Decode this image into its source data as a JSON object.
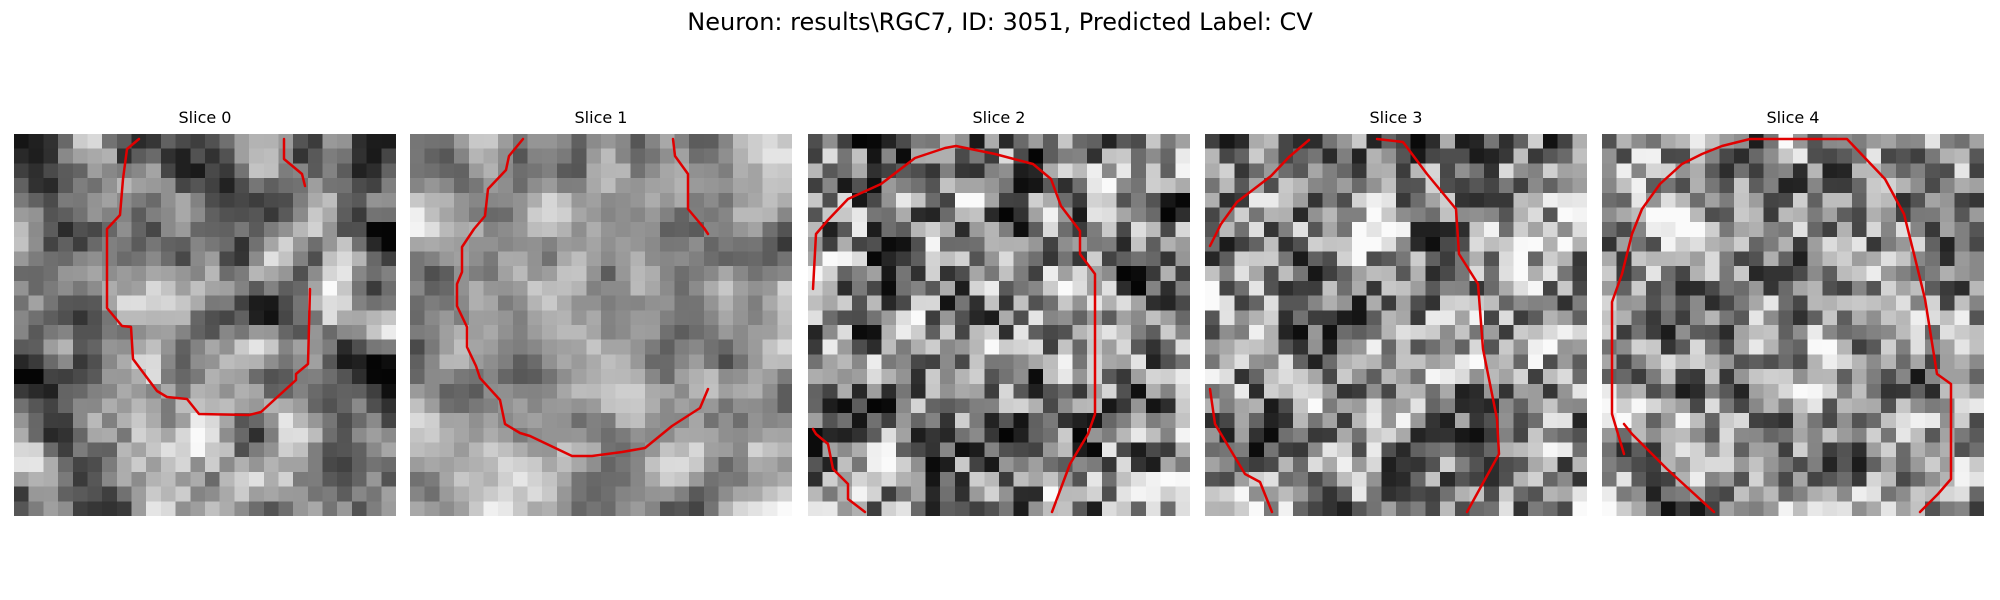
{
  "figure": {
    "title": "Neuron: results\\RGC7, ID: 3051, Predicted Label: CV"
  },
  "panels": [
    {
      "title": "Slice 0",
      "image": {
        "grid_cols": 26,
        "grid_rows": 26,
        "seed": 11,
        "mean": 0.47,
        "contrast": 0.95,
        "smooth": 0.7,
        "palette": "grayscale"
      },
      "contour": {
        "color": "#e00000",
        "segments": [
          [
            [
              125,
              5
            ],
            [
              113,
              15
            ],
            [
              109,
              45
            ],
            [
              106,
              81
            ],
            [
              93,
              95
            ],
            [
              93,
              174
            ],
            [
              108,
              192
            ],
            [
              117,
              193
            ],
            [
              119,
              225
            ],
            [
              143,
              257
            ],
            [
              153,
              263
            ],
            [
              173,
              265
            ],
            [
              185,
              280
            ],
            [
              235,
              281
            ],
            [
              247,
              278
            ],
            [
              282,
              246
            ],
            [
              282,
              240
            ],
            [
              294,
              230
            ],
            [
              296,
              155
            ]
          ],
          [
            [
              270,
              5
            ],
            [
              270,
              25
            ],
            [
              288,
              40
            ],
            [
              291,
              52
            ]
          ]
        ]
      }
    },
    {
      "title": "Slice 1",
      "image": {
        "grid_cols": 26,
        "grid_rows": 26,
        "seed": 23,
        "mean": 0.6,
        "contrast": 0.65,
        "smooth": 0.8,
        "palette": "grayscale"
      },
      "contour": {
        "color": "#e00000",
        "segments": [
          [
            [
              113,
              5
            ],
            [
              99,
              22
            ],
            [
              96,
              36
            ],
            [
              78,
              55
            ],
            [
              75,
              82
            ],
            [
              64,
              95
            ],
            [
              52,
              113
            ],
            [
              52,
              138
            ],
            [
              47,
              150
            ],
            [
              47,
              172
            ],
            [
              57,
              193
            ],
            [
              57,
              213
            ],
            [
              66,
              232
            ],
            [
              70,
              244
            ],
            [
              90,
              266
            ],
            [
              95,
              290
            ],
            [
              110,
              299
            ],
            [
              120,
              302
            ],
            [
              162,
              322
            ],
            [
              182,
              322
            ],
            [
              212,
              318
            ],
            [
              235,
              314
            ],
            [
              262,
              292
            ],
            [
              290,
              274
            ],
            [
              298,
              255
            ]
          ],
          [
            [
              263,
              5
            ],
            [
              265,
              22
            ],
            [
              278,
              40
            ],
            [
              278,
              75
            ],
            [
              294,
              94
            ],
            [
              298,
              100
            ]
          ]
        ]
      }
    },
    {
      "title": "Slice 2",
      "image": {
        "grid_cols": 26,
        "grid_rows": 26,
        "seed": 37,
        "mean": 0.5,
        "contrast": 1.15,
        "smooth": 0.3,
        "palette": "grayscale"
      },
      "contour": {
        "color": "#e00000",
        "segments": [
          [
            [
              5,
              155
            ],
            [
              8,
              100
            ],
            [
              20,
              86
            ],
            [
              40,
              65
            ],
            [
              73,
              50
            ],
            [
              107,
              24
            ],
            [
              137,
              14
            ],
            [
              148,
              12
            ],
            [
              187,
              20
            ],
            [
              225,
              30
            ],
            [
              243,
              45
            ],
            [
              253,
              72
            ],
            [
              272,
              97
            ],
            [
              272,
              120
            ],
            [
              287,
              140
            ],
            [
              287,
              280
            ],
            [
              280,
              300
            ],
            [
              262,
              330
            ],
            [
              244,
              378
            ]
          ],
          [
            [
              5,
              295
            ],
            [
              8,
              300
            ],
            [
              20,
              310
            ],
            [
              25,
              335
            ],
            [
              40,
              350
            ],
            [
              40,
              365
            ],
            [
              57,
              378
            ]
          ]
        ]
      }
    },
    {
      "title": "Slice 3",
      "image": {
        "grid_cols": 26,
        "grid_rows": 26,
        "seed": 53,
        "mean": 0.55,
        "contrast": 1.1,
        "smooth": 0.3,
        "palette": "grayscale"
      },
      "contour": {
        "color": "#e00000",
        "segments": [
          [
            [
              5,
              112
            ],
            [
              16,
              90
            ],
            [
              32,
              68
            ],
            [
              66,
              42
            ],
            [
              84,
              23
            ],
            [
              104,
              6
            ]
          ],
          [
            [
              172,
              5
            ],
            [
              198,
              8
            ],
            [
              222,
              40
            ],
            [
              251,
              75
            ],
            [
              254,
              120
            ],
            [
              273,
              150
            ],
            [
              278,
              215
            ],
            [
              287,
              260
            ],
            [
              292,
              285
            ],
            [
              294,
              320
            ],
            [
              262,
              378
            ]
          ],
          [
            [
              5,
              255
            ],
            [
              10,
              290
            ],
            [
              25,
              315
            ],
            [
              40,
              340
            ],
            [
              55,
              348
            ],
            [
              67,
              378
            ]
          ]
        ]
      }
    },
    {
      "title": "Slice 4",
      "image": {
        "grid_cols": 26,
        "grid_rows": 26,
        "seed": 71,
        "mean": 0.55,
        "contrast": 1.0,
        "smooth": 0.3,
        "palette": "grayscale"
      },
      "contour": {
        "color": "#e00000",
        "segments": [
          [
            [
              22,
              320
            ],
            [
              10,
              280
            ],
            [
              10,
              168
            ],
            [
              20,
              140
            ],
            [
              30,
              100
            ],
            [
              40,
              75
            ],
            [
              58,
              50
            ],
            [
              80,
              30
            ],
            [
              100,
              20
            ],
            [
              120,
              12
            ],
            [
              148,
              5
            ],
            [
              245,
              5
            ],
            [
              283,
              45
            ],
            [
              302,
              80
            ],
            [
              312,
              120
            ],
            [
              323,
              165
            ],
            [
              335,
              240
            ],
            [
              349,
              250
            ],
            [
              349,
              345
            ],
            [
              336,
              360
            ],
            [
              318,
              378
            ]
          ],
          [
            [
              22,
              290
            ],
            [
              30,
              300
            ],
            [
              65,
              335
            ],
            [
              112,
              378
            ]
          ]
        ]
      }
    }
  ]
}
